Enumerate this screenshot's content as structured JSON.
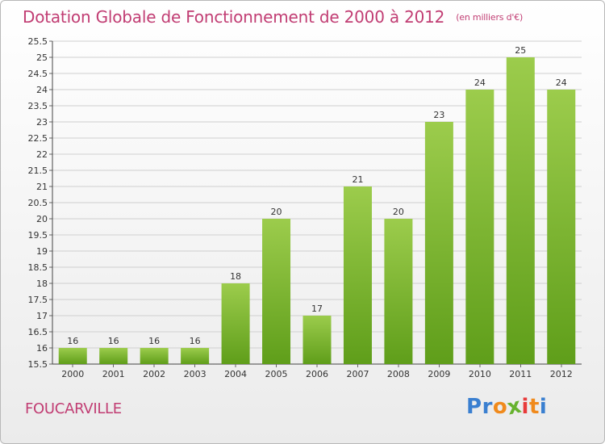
{
  "header": {
    "title": "Dotation Globale de Fonctionnement de 2000 à 2012",
    "unit": "(en milliers d'€)"
  },
  "footer": {
    "town": "FOUCARVILLE",
    "logo": [
      "P",
      "r",
      "o",
      "x",
      "i",
      "t",
      "i"
    ]
  },
  "colors": {
    "title": "#c13d73",
    "bar_top": "#9ccc4c",
    "bar_bottom": "#5f9e1a",
    "grid": "#cfcfcf",
    "logo": [
      "#3a7fd0",
      "#3a7fd0",
      "#f08a1c",
      "#66b22e",
      "#e83a3a",
      "#f08a1c",
      "#3a7fd0"
    ]
  },
  "chart_data": {
    "type": "bar",
    "categories": [
      "2000",
      "2001",
      "2002",
      "2003",
      "2004",
      "2005",
      "2006",
      "2007",
      "2008",
      "2009",
      "2010",
      "2011",
      "2012"
    ],
    "values": [
      16,
      16,
      16,
      16,
      18,
      20,
      17,
      21,
      20,
      23,
      24,
      25,
      24
    ],
    "value_labels": [
      "16",
      "16",
      "16",
      "16",
      "18",
      "20",
      "17",
      "21",
      "20",
      "23",
      "24",
      "25",
      "24"
    ],
    "ylim": [
      15.5,
      25.5
    ],
    "yticks": [
      "15.5",
      "16",
      "16.5",
      "17",
      "17.5",
      "18",
      "18.5",
      "19",
      "19.5",
      "20",
      "20.5",
      "21",
      "21.5",
      "22",
      "22.5",
      "23",
      "23.5",
      "24",
      "24.5",
      "25",
      "25.5"
    ],
    "grid": true
  }
}
